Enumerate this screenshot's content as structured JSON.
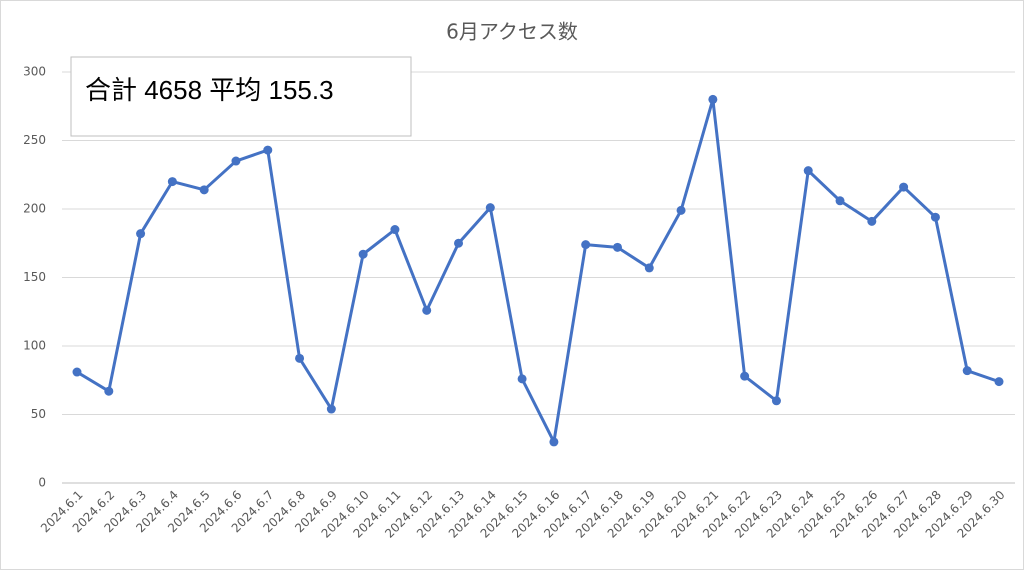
{
  "chart_data": {
    "type": "line",
    "title": "6月アクセス数",
    "annotation": "合計 4658 平均 155.3",
    "categories": [
      "2024.6.1",
      "2024.6.2",
      "2024.6.3",
      "2024.6.4",
      "2024.6.5",
      "2024.6.6",
      "2024.6.7",
      "2024.6.8",
      "2024.6.9",
      "2024.6.10",
      "2024.6.11",
      "2024.6.12",
      "2024.6.13",
      "2024.6.14",
      "2024.6.15",
      "2024.6.16",
      "2024.6.17",
      "2024.6.18",
      "2024.6.19",
      "2024.6.20",
      "2024.6.21",
      "2024.6.22",
      "2024.6.23",
      "2024.6.24",
      "2024.6.25",
      "2024.6.26",
      "2024.6.27",
      "2024.6.28",
      "2024.6.29",
      "2024.6.30"
    ],
    "series": [
      {
        "color": "#4472c4",
        "values": [
          81,
          67,
          182,
          220,
          214,
          235,
          243,
          91,
          54,
          167,
          185,
          126,
          175,
          201,
          76,
          30,
          174,
          172,
          157,
          199,
          280,
          78,
          60,
          228,
          206,
          191,
          216,
          194,
          82,
          74
        ]
      }
    ],
    "ylim": [
      0,
      300
    ],
    "yticks": [
      0,
      50,
      100,
      150,
      200,
      250,
      300
    ],
    "grid": true
  }
}
